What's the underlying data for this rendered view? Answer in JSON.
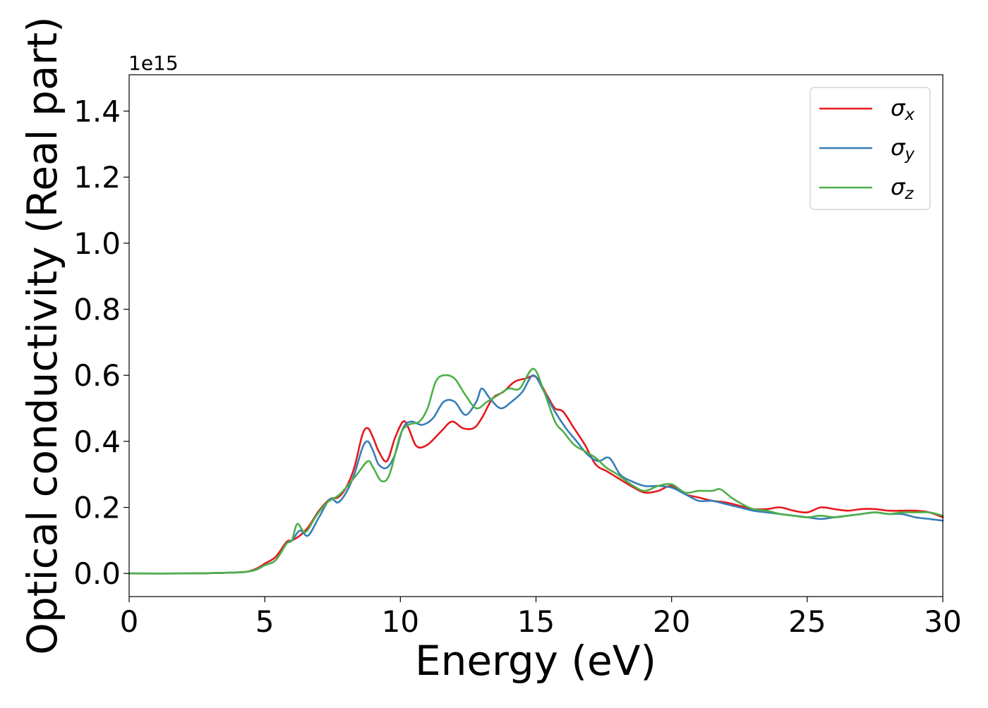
{
  "chart_data": {
    "type": "line",
    "title": "",
    "xlabel": "Energy (eV)",
    "ylabel": "Optical conductivity (Real part)",
    "offset_label": "1e15",
    "xlim": [
      0,
      30
    ],
    "ylim": [
      -0.07,
      1.51
    ],
    "x_ticks": [
      0,
      5,
      10,
      15,
      20,
      25,
      30
    ],
    "x_tick_labels": [
      "0",
      "5",
      "10",
      "15",
      "20",
      "25",
      "30"
    ],
    "y_ticks": [
      0.0,
      0.2,
      0.4,
      0.6,
      0.8,
      1.0,
      1.2,
      1.4
    ],
    "y_tick_labels": [
      "0.0",
      "0.2",
      "0.4",
      "0.6",
      "0.8",
      "1.0",
      "1.2",
      "1.4"
    ],
    "grid": false,
    "legend_position": "top-right",
    "series": [
      {
        "name": "σx",
        "symbol": "σ",
        "subscript": "x",
        "color": "#e41a1c",
        "x": [
          0,
          2,
          3.5,
          4.3,
          4.7,
          5.0,
          5.4,
          5.8,
          6.0,
          6.3,
          6.6,
          7.0,
          7.4,
          7.7,
          8.0,
          8.3,
          8.6,
          8.8,
          9.0,
          9.2,
          9.5,
          9.8,
          10.1,
          10.3,
          10.6,
          11.0,
          11.5,
          11.9,
          12.3,
          12.7,
          13.0,
          13.4,
          13.8,
          14.2,
          14.6,
          15.0,
          15.4,
          15.7,
          16.0,
          16.4,
          16.8,
          17.2,
          17.6,
          18.0,
          18.5,
          19.0,
          19.5,
          20.0,
          20.5,
          21.0,
          21.5,
          22.0,
          22.5,
          23.0,
          23.5,
          24.0,
          24.5,
          25.0,
          25.5,
          26.0,
          26.5,
          27.0,
          27.5,
          28.0,
          28.5,
          29.0,
          29.5,
          30.0
        ],
        "y": [
          0.0,
          0.0,
          0.002,
          0.005,
          0.015,
          0.03,
          0.05,
          0.095,
          0.1,
          0.115,
          0.14,
          0.19,
          0.225,
          0.23,
          0.26,
          0.32,
          0.42,
          0.44,
          0.41,
          0.37,
          0.34,
          0.41,
          0.46,
          0.44,
          0.385,
          0.39,
          0.43,
          0.46,
          0.44,
          0.44,
          0.47,
          0.53,
          0.55,
          0.58,
          0.59,
          0.595,
          0.54,
          0.5,
          0.49,
          0.44,
          0.39,
          0.33,
          0.31,
          0.29,
          0.265,
          0.245,
          0.25,
          0.265,
          0.24,
          0.23,
          0.22,
          0.215,
          0.205,
          0.195,
          0.195,
          0.2,
          0.19,
          0.185,
          0.2,
          0.195,
          0.19,
          0.195,
          0.195,
          0.19,
          0.19,
          0.19,
          0.185,
          0.17
        ]
      },
      {
        "name": "σy",
        "symbol": "σ",
        "subscript": "y",
        "color": "#377eb8",
        "x": [
          0,
          2,
          3.5,
          4.3,
          4.7,
          5.0,
          5.4,
          5.8,
          6.0,
          6.3,
          6.6,
          7.0,
          7.4,
          7.7,
          8.0,
          8.3,
          8.6,
          8.8,
          9.0,
          9.2,
          9.5,
          9.8,
          10.1,
          10.4,
          10.8,
          11.2,
          11.6,
          12.0,
          12.4,
          12.8,
          13.0,
          13.3,
          13.7,
          14.1,
          14.5,
          14.9,
          15.3,
          15.7,
          16.1,
          16.5,
          16.9,
          17.3,
          17.7,
          18.1,
          18.5,
          19.0,
          19.5,
          20.0,
          20.5,
          21.0,
          21.5,
          22.0,
          22.5,
          23.0,
          23.5,
          24.0,
          24.5,
          25.0,
          25.5,
          26.0,
          26.5,
          27.0,
          27.5,
          28.0,
          28.5,
          29.0,
          29.5,
          30.0
        ],
        "y": [
          0.0,
          0.0,
          0.002,
          0.005,
          0.012,
          0.025,
          0.04,
          0.09,
          0.1,
          0.13,
          0.115,
          0.17,
          0.225,
          0.215,
          0.245,
          0.3,
          0.38,
          0.4,
          0.37,
          0.33,
          0.32,
          0.36,
          0.44,
          0.46,
          0.45,
          0.47,
          0.52,
          0.52,
          0.48,
          0.52,
          0.56,
          0.53,
          0.5,
          0.52,
          0.55,
          0.6,
          0.55,
          0.49,
          0.44,
          0.4,
          0.36,
          0.34,
          0.35,
          0.3,
          0.28,
          0.265,
          0.265,
          0.26,
          0.24,
          0.22,
          0.22,
          0.21,
          0.2,
          0.19,
          0.185,
          0.18,
          0.175,
          0.17,
          0.165,
          0.17,
          0.175,
          0.18,
          0.185,
          0.18,
          0.18,
          0.17,
          0.165,
          0.16
        ]
      },
      {
        "name": "σz",
        "symbol": "σ",
        "subscript": "z",
        "color": "#4daf4a",
        "x": [
          0,
          2,
          3.5,
          4.3,
          4.7,
          5.0,
          5.4,
          5.8,
          6.0,
          6.2,
          6.5,
          6.9,
          7.3,
          7.7,
          8.0,
          8.4,
          8.8,
          9.0,
          9.3,
          9.6,
          10.0,
          10.3,
          10.7,
          11.0,
          11.3,
          11.6,
          12.0,
          12.4,
          12.8,
          13.2,
          13.6,
          14.0,
          14.4,
          14.9,
          15.3,
          15.7,
          16.0,
          16.4,
          16.8,
          17.2,
          17.6,
          18.0,
          18.5,
          19.0,
          19.5,
          20.0,
          20.5,
          21.0,
          21.5,
          21.8,
          22.2,
          22.6,
          23.0,
          23.5,
          24.0,
          24.5,
          25.0,
          25.5,
          26.0,
          26.5,
          27.0,
          27.5,
          28.0,
          28.5,
          29.0,
          29.5,
          30.0
        ],
        "y": [
          0.0,
          0.0,
          0.002,
          0.005,
          0.012,
          0.025,
          0.04,
          0.09,
          0.1,
          0.15,
          0.125,
          0.175,
          0.215,
          0.235,
          0.26,
          0.3,
          0.34,
          0.32,
          0.28,
          0.3,
          0.42,
          0.45,
          0.46,
          0.5,
          0.58,
          0.6,
          0.59,
          0.54,
          0.5,
          0.52,
          0.54,
          0.56,
          0.56,
          0.62,
          0.55,
          0.46,
          0.43,
          0.39,
          0.37,
          0.35,
          0.32,
          0.3,
          0.27,
          0.25,
          0.265,
          0.27,
          0.245,
          0.25,
          0.25,
          0.255,
          0.23,
          0.21,
          0.195,
          0.19,
          0.18,
          0.175,
          0.17,
          0.175,
          0.17,
          0.175,
          0.18,
          0.185,
          0.18,
          0.185,
          0.185,
          0.185,
          0.175
        ]
      }
    ]
  }
}
